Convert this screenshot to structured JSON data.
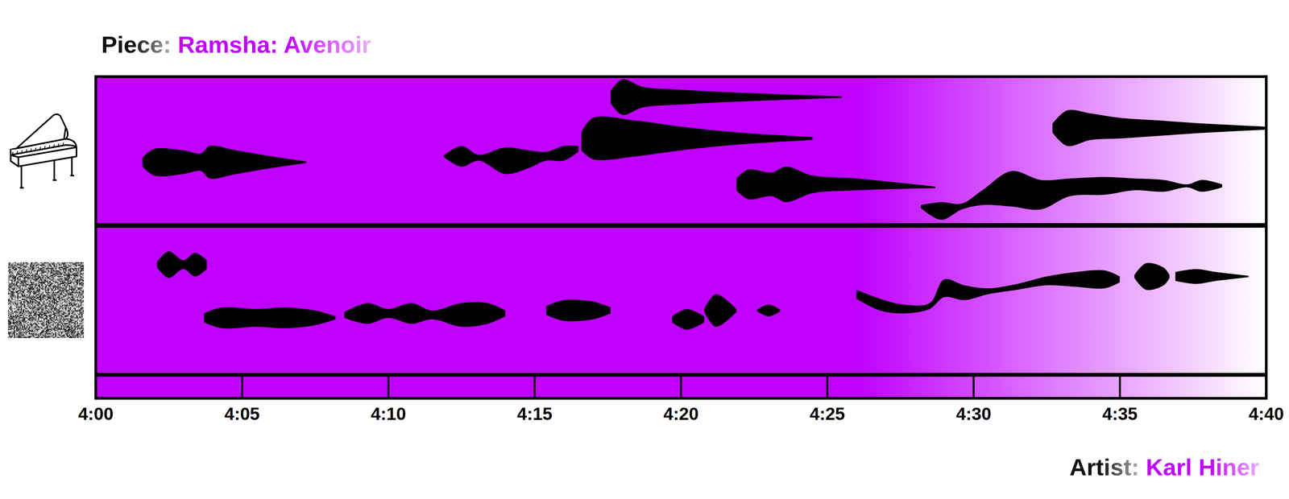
{
  "chart_data": {
    "type": "graphic_score",
    "title_prefix": "Piece:",
    "title": "Ramsha: Avenoir",
    "artist_prefix": "Artist:",
    "artist": "Karl Hiner",
    "color": "#c000ff",
    "fade_start": 266,
    "xlim": [
      240,
      280
    ],
    "xticks": [
      {
        "value": 240,
        "label": "4:00"
      },
      {
        "value": 245,
        "label": "4:05"
      },
      {
        "value": 250,
        "label": "4:10"
      },
      {
        "value": 255,
        "label": "4:15"
      },
      {
        "value": 260,
        "label": "4:20"
      },
      {
        "value": 265,
        "label": "4:25"
      },
      {
        "value": 270,
        "label": "4:30"
      },
      {
        "value": 275,
        "label": "4:35"
      },
      {
        "value": 280,
        "label": "4:40"
      }
    ],
    "ylim": [
      0,
      10
    ],
    "tick_labels": "x",
    "tracks": [
      {
        "color": "#000000",
        "events": [
          {
            "points": [
              [
                241.6,
                4.2,
                0.3
              ],
              [
                242.0,
                4.2,
                0.9
              ],
              [
                243.0,
                4.2,
                0.8
              ],
              [
                243.6,
                4.2,
                0.6
              ],
              [
                243.9,
                4.2,
                1.1
              ],
              [
                244.8,
                4.2,
                0.8
              ],
              [
                246.0,
                4.2,
                0.4
              ],
              [
                247.2,
                4.2,
                0.05
              ]
            ]
          },
          {
            "points": [
              [
                251.9,
                4.6,
                0.05
              ],
              [
                252.5,
                4.6,
                0.7
              ],
              [
                253.1,
                4.5,
                0.2
              ],
              [
                254.0,
                4.3,
                0.9
              ],
              [
                254.8,
                4.4,
                0.6
              ],
              [
                255.4,
                4.6,
                0.3
              ],
              [
                256.0,
                4.8,
                0.5
              ],
              [
                256.5,
                5.1,
                0.2
              ]
            ]
          },
          {
            "points": [
              [
                256.6,
                5.6,
                0.6
              ],
              [
                257.0,
                5.8,
                1.4
              ],
              [
                258.5,
                5.8,
                1.2
              ],
              [
                260.0,
                5.8,
                0.8
              ],
              [
                262.0,
                5.8,
                0.4
              ],
              [
                264.5,
                5.8,
                0.1
              ]
            ]
          },
          {
            "points": [
              [
                257.6,
                8.6,
                0.4
              ],
              [
                258.0,
                8.6,
                1.2
              ],
              [
                258.7,
                8.6,
                0.7
              ],
              [
                260.0,
                8.6,
                0.5
              ],
              [
                262.0,
                8.6,
                0.3
              ],
              [
                265.5,
                8.6,
                0.05
              ]
            ]
          },
          {
            "points": [
              [
                261.9,
                2.7,
                0.4
              ],
              [
                262.3,
                2.7,
                1.0
              ],
              [
                263.1,
                2.7,
                0.8
              ],
              [
                263.6,
                2.7,
                1.2
              ],
              [
                264.5,
                2.7,
                0.6
              ],
              [
                266.0,
                2.7,
                0.4
              ],
              [
                268.7,
                2.5,
                0.05
              ]
            ]
          },
          {
            "points": [
              [
                268.2,
                1.2,
                0.1
              ],
              [
                268.9,
                0.9,
                0.6
              ],
              [
                269.6,
                1.2,
                0.2
              ],
              [
                270.3,
                1.8,
                0.5
              ],
              [
                271.3,
                2.4,
                1.2
              ],
              [
                272.3,
                2.0,
                1.0
              ],
              [
                273.3,
                2.5,
                0.6
              ],
              [
                274.5,
                2.6,
                0.6
              ],
              [
                275.5,
                2.7,
                0.4
              ],
              [
                276.5,
                2.6,
                0.4
              ],
              [
                277.3,
                2.6,
                0.1
              ],
              [
                277.8,
                2.6,
                0.4
              ],
              [
                278.5,
                2.6,
                0.1
              ]
            ]
          },
          {
            "points": [
              [
                272.7,
                6.5,
                0.3
              ],
              [
                273.2,
                6.5,
                1.2
              ],
              [
                274.0,
                6.6,
                0.9
              ],
              [
                275.0,
                6.5,
                0.7
              ],
              [
                276.5,
                6.5,
                0.5
              ],
              [
                278.0,
                6.5,
                0.3
              ],
              [
                280.0,
                6.5,
                0.1
              ]
            ]
          }
        ]
      },
      {
        "color": "#000000",
        "events": [
          {
            "points": [
              [
                242.1,
                7.4,
                0.2
              ],
              [
                242.5,
                7.4,
                0.9
              ],
              [
                243.0,
                7.4,
                0.3
              ],
              [
                243.4,
                7.4,
                0.8
              ],
              [
                243.8,
                7.4,
                0.3
              ]
            ]
          },
          {
            "points": [
              [
                243.7,
                3.8,
                0.3
              ],
              [
                244.3,
                3.8,
                0.7
              ],
              [
                245.5,
                3.8,
                0.6
              ],
              [
                246.5,
                3.8,
                0.7
              ],
              [
                247.5,
                3.8,
                0.5
              ],
              [
                248.2,
                3.8,
                0.1
              ]
            ]
          },
          {
            "points": [
              [
                248.5,
                4.0,
                0.2
              ],
              [
                249.3,
                4.1,
                0.7
              ],
              [
                250.0,
                4.1,
                0.3
              ],
              [
                250.8,
                4.1,
                0.7
              ],
              [
                251.5,
                4.0,
                0.3
              ],
              [
                252.5,
                4.0,
                0.8
              ],
              [
                253.4,
                4.1,
                0.7
              ],
              [
                254.0,
                4.1,
                0.2
              ]
            ]
          },
          {
            "points": [
              [
                255.4,
                4.3,
                0.3
              ],
              [
                256.0,
                4.3,
                0.7
              ],
              [
                257.0,
                4.3,
                0.6
              ],
              [
                257.6,
                4.3,
                0.2
              ]
            ]
          },
          {
            "points": [
              [
                259.7,
                3.7,
                0.2
              ],
              [
                260.2,
                3.7,
                0.7
              ],
              [
                260.8,
                3.7,
                0.2
              ]
            ]
          },
          {
            "points": [
              [
                260.8,
                4.3,
                0.1
              ],
              [
                261.2,
                4.3,
                1.1
              ],
              [
                261.9,
                4.3,
                0.1
              ]
            ]
          },
          {
            "points": [
              [
                262.6,
                4.3,
                0.05
              ],
              [
                263.0,
                4.3,
                0.4
              ],
              [
                263.4,
                4.3,
                0.05
              ]
            ]
          },
          {
            "points": [
              [
                266.0,
                5.4,
                0.3
              ],
              [
                266.8,
                4.7,
                0.4
              ],
              [
                267.6,
                4.4,
                0.3
              ],
              [
                268.5,
                4.6,
                0.2
              ],
              [
                269.0,
                5.8,
                0.6
              ],
              [
                269.7,
                5.5,
                0.5
              ],
              [
                270.5,
                5.6,
                0.2
              ],
              [
                271.5,
                5.9,
                0.2
              ],
              [
                272.5,
                6.3,
                0.3
              ],
              [
                273.5,
                6.4,
                0.5
              ],
              [
                274.5,
                6.4,
                0.6
              ],
              [
                275.0,
                6.4,
                0.2
              ]
            ]
          },
          {
            "points": [
              [
                275.5,
                6.6,
                0.1
              ],
              [
                275.9,
                6.6,
                0.9
              ],
              [
                276.5,
                6.6,
                0.6
              ],
              [
                276.7,
                6.6,
                0.1
              ]
            ]
          },
          {
            "points": [
              [
                276.9,
                6.6,
                0.3
              ],
              [
                277.6,
                6.6,
                0.5
              ],
              [
                278.3,
                6.6,
                0.3
              ],
              [
                279.4,
                6.6,
                0.05
              ]
            ]
          }
        ]
      }
    ]
  }
}
